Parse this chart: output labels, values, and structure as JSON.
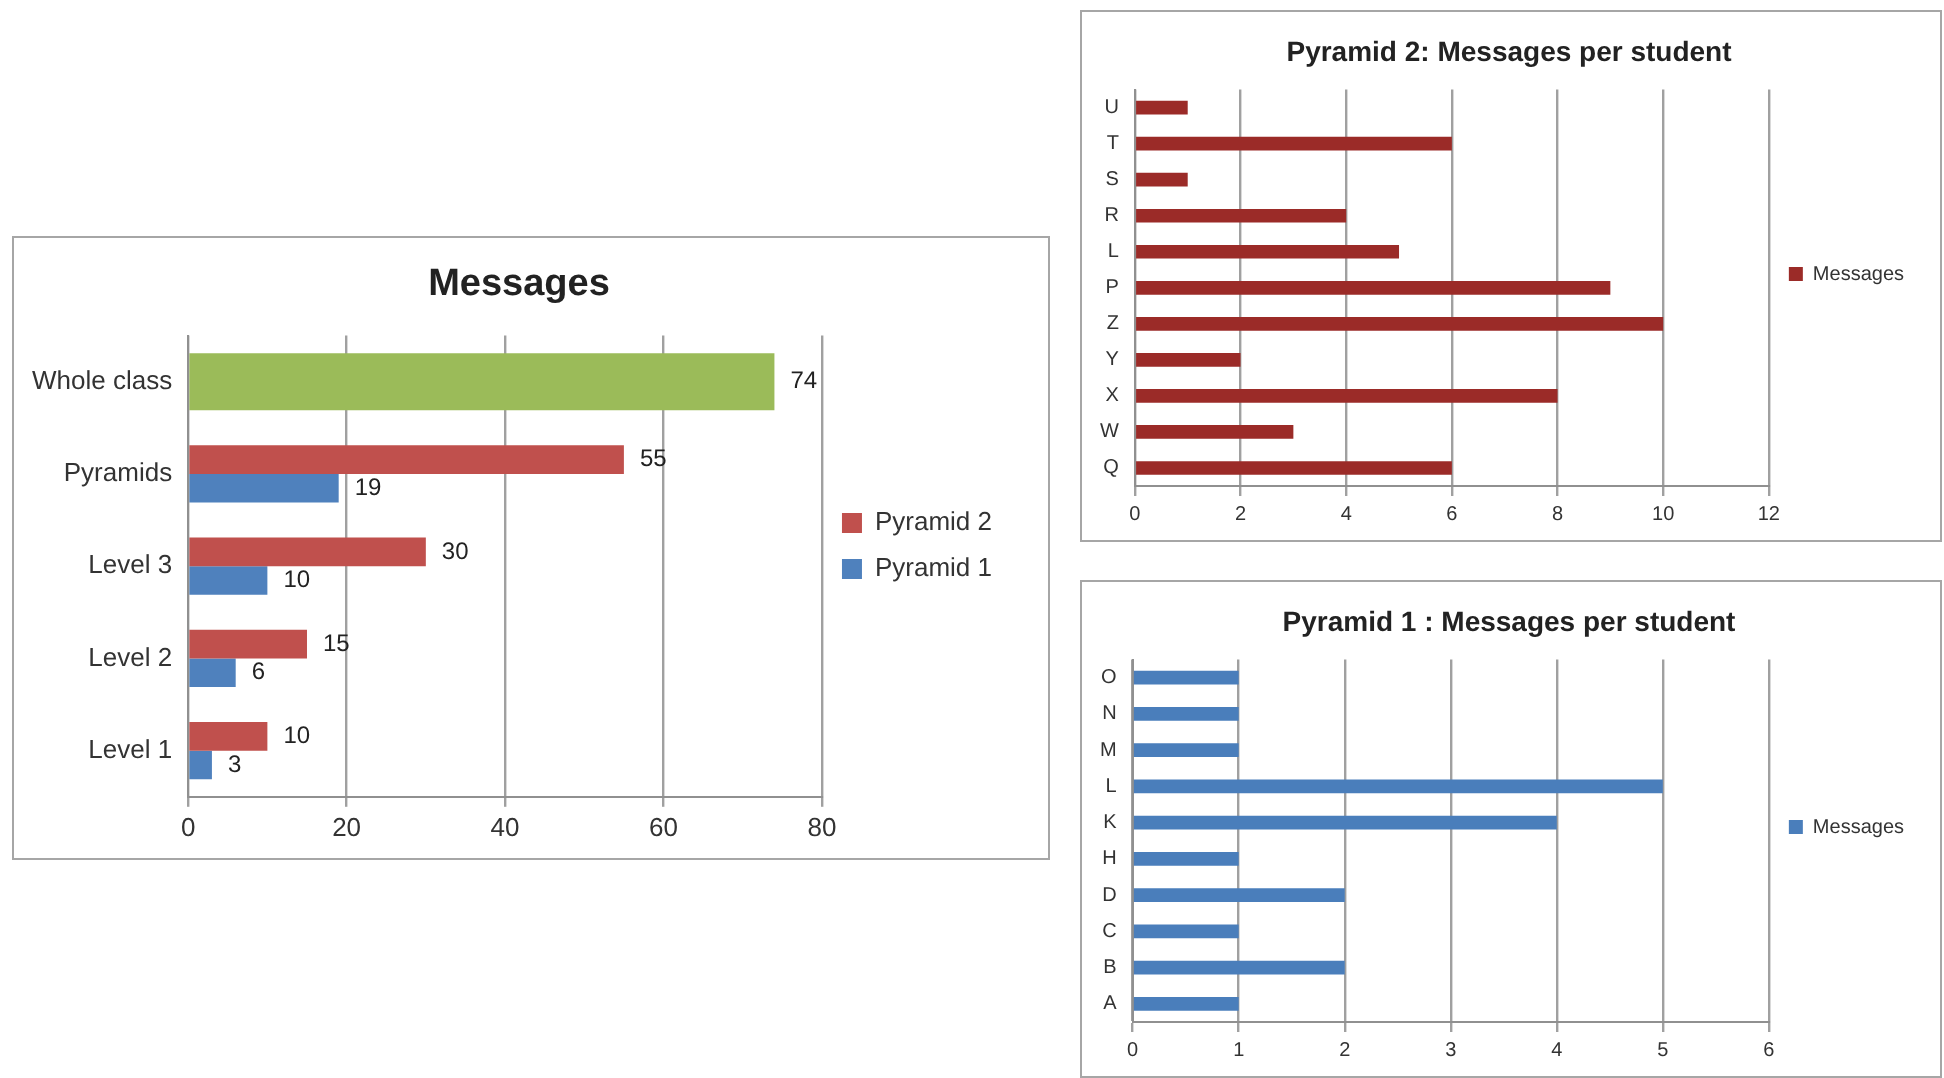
{
  "chart_data": [
    {
      "type": "bar",
      "title": "Messages",
      "orientation": "horizontal",
      "categories": [
        "Whole class",
        "Pyramids",
        "Level 3",
        "Level 2",
        "Level 1"
      ],
      "series": [
        {
          "name": "Pyramid 2",
          "color": "#c0504d",
          "values": [
            null,
            55,
            30,
            15,
            10
          ]
        },
        {
          "name": "Pyramid 1",
          "color": "#4f81bd",
          "values": [
            null,
            19,
            10,
            6,
            3
          ]
        },
        {
          "color": "#9bbb59",
          "values": [
            74,
            null,
            null,
            null,
            null
          ]
        }
      ],
      "xlim": [
        0,
        80
      ],
      "xticks": [
        0,
        20,
        40,
        60,
        80
      ],
      "grid": "x",
      "legend": "right",
      "data_labels": true
    },
    {
      "type": "bar",
      "title": "Pyramid 2: Messages per student",
      "orientation": "horizontal",
      "categories": [
        "U",
        "T",
        "S",
        "R",
        "L",
        "P",
        "Z",
        "Y",
        "X",
        "W",
        "Q"
      ],
      "series": [
        {
          "name": "Messages",
          "color": "#9b2b28",
          "values": [
            1,
            6,
            1,
            4,
            5,
            9,
            10,
            2,
            8,
            3,
            6
          ]
        }
      ],
      "xlim": [
        0,
        12
      ],
      "xticks": [
        0,
        2,
        4,
        6,
        8,
        10,
        12
      ],
      "grid": "x",
      "legend": "right"
    },
    {
      "type": "bar",
      "title": "Pyramid 1 : Messages per student",
      "orientation": "horizontal",
      "categories": [
        "O",
        "N",
        "M",
        "L",
        "K",
        "H",
        "D",
        "C",
        "B",
        "A"
      ],
      "series": [
        {
          "name": "Messages",
          "color": "#4a7ebb",
          "values": [
            1,
            1,
            1,
            5,
            4,
            1,
            2,
            1,
            2,
            1
          ]
        }
      ],
      "xlim": [
        0,
        6
      ],
      "xticks": [
        0,
        1,
        2,
        3,
        4,
        5,
        6
      ],
      "grid": "x",
      "legend": "right"
    }
  ]
}
